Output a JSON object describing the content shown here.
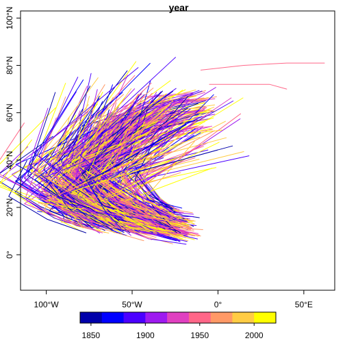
{
  "chart_data": {
    "type": "line",
    "title": "year",
    "x_ticks": [
      "100°W",
      "50°W",
      "0°",
      "50°E"
    ],
    "x_tick_values": [
      -100,
      -50,
      0,
      50
    ],
    "y_ticks": [
      "0°",
      "20°N",
      "40°N",
      "60°N",
      "80°N",
      "100°N"
    ],
    "y_tick_values": [
      0,
      20,
      40,
      60,
      80,
      100
    ],
    "xlim": [
      -115,
      68
    ],
    "ylim": [
      -15,
      103
    ],
    "legend": {
      "placement": "bottom",
      "ticks": [
        "1850",
        "1900",
        "1950",
        "2000"
      ],
      "tick_values": [
        1850,
        1900,
        1950,
        2000
      ],
      "range": [
        1840,
        2020
      ],
      "colors": [
        "#0000AA",
        "#0000FF",
        "#4B00FF",
        "#9E1AF0",
        "#E040C0",
        "#FF6688",
        "#FF9966",
        "#FFCC44",
        "#FFFF00"
      ]
    },
    "series_summary": "Atlantic hurricane tracks, colored by year",
    "tracks": [
      {
        "year": 1962,
        "points": [
          [
            -25,
            12
          ],
          [
            -45,
            16
          ],
          [
            -65,
            22
          ],
          [
            -80,
            30
          ],
          [
            -75,
            42
          ],
          [
            -55,
            52
          ],
          [
            -30,
            60
          ]
        ]
      },
      {
        "year": 1978,
        "points": [
          [
            -20,
            10
          ],
          [
            -40,
            14
          ],
          [
            -60,
            18
          ],
          [
            -80,
            22
          ],
          [
            -95,
            26
          ]
        ]
      },
      {
        "year": 1895,
        "points": [
          [
            -30,
            14
          ],
          [
            -55,
            18
          ],
          [
            -75,
            26
          ],
          [
            -82,
            36
          ],
          [
            -70,
            48
          ],
          [
            -40,
            58
          ]
        ]
      },
      {
        "year": 2005,
        "points": [
          [
            -18,
            11
          ],
          [
            -35,
            13
          ],
          [
            -55,
            17
          ],
          [
            -75,
            21
          ],
          [
            -88,
            26
          ],
          [
            -92,
            32
          ]
        ]
      },
      {
        "year": 1932,
        "points": [
          [
            -45,
            15
          ],
          [
            -60,
            20
          ],
          [
            -72,
            30
          ],
          [
            -70,
            42
          ],
          [
            -52,
            52
          ]
        ]
      },
      {
        "year": 1990,
        "points": [
          [
            -22,
            12
          ],
          [
            -42,
            15
          ],
          [
            -62,
            20
          ],
          [
            -78,
            28
          ],
          [
            -80,
            38
          ],
          [
            -65,
            50
          ],
          [
            -35,
            60
          ],
          [
            -10,
            64
          ]
        ]
      },
      {
        "year": 1998,
        "points": [
          [
            -60,
            14
          ],
          [
            -75,
            18
          ],
          [
            -88,
            22
          ],
          [
            -97,
            24
          ]
        ]
      },
      {
        "year": 1955,
        "points": [
          [
            -30,
            12
          ],
          [
            -50,
            15
          ],
          [
            -68,
            19
          ],
          [
            -80,
            25
          ],
          [
            -78,
            34
          ],
          [
            -62,
            44
          ]
        ]
      },
      {
        "year": 2012,
        "points": [
          [
            -25,
            13
          ],
          [
            -45,
            16
          ],
          [
            -63,
            22
          ],
          [
            -72,
            32
          ],
          [
            -60,
            44
          ],
          [
            -30,
            54
          ],
          [
            -5,
            58
          ]
        ]
      },
      {
        "year": 1871,
        "points": [
          [
            -50,
            16
          ],
          [
            -68,
            22
          ],
          [
            -78,
            32
          ],
          [
            -70,
            46
          ],
          [
            -50,
            56
          ]
        ]
      },
      {
        "year": 1983,
        "points": [
          [
            -80,
            18
          ],
          [
            -86,
            24
          ],
          [
            -84,
            32
          ],
          [
            -72,
            42
          ]
        ]
      },
      {
        "year": 2001,
        "points": [
          [
            -40,
            12
          ],
          [
            -58,
            14
          ],
          [
            -75,
            17
          ],
          [
            -90,
            20
          ]
        ]
      }
    ],
    "notable_tracks": [
      {
        "year": 1945,
        "points": [
          [
            -5,
            72
          ],
          [
            15,
            72
          ],
          [
            30,
            72
          ],
          [
            40,
            70
          ]
        ]
      },
      {
        "year": 1948,
        "points": [
          [
            -10,
            78
          ],
          [
            15,
            80
          ],
          [
            40,
            81
          ],
          [
            62,
            81
          ]
        ]
      }
    ]
  }
}
